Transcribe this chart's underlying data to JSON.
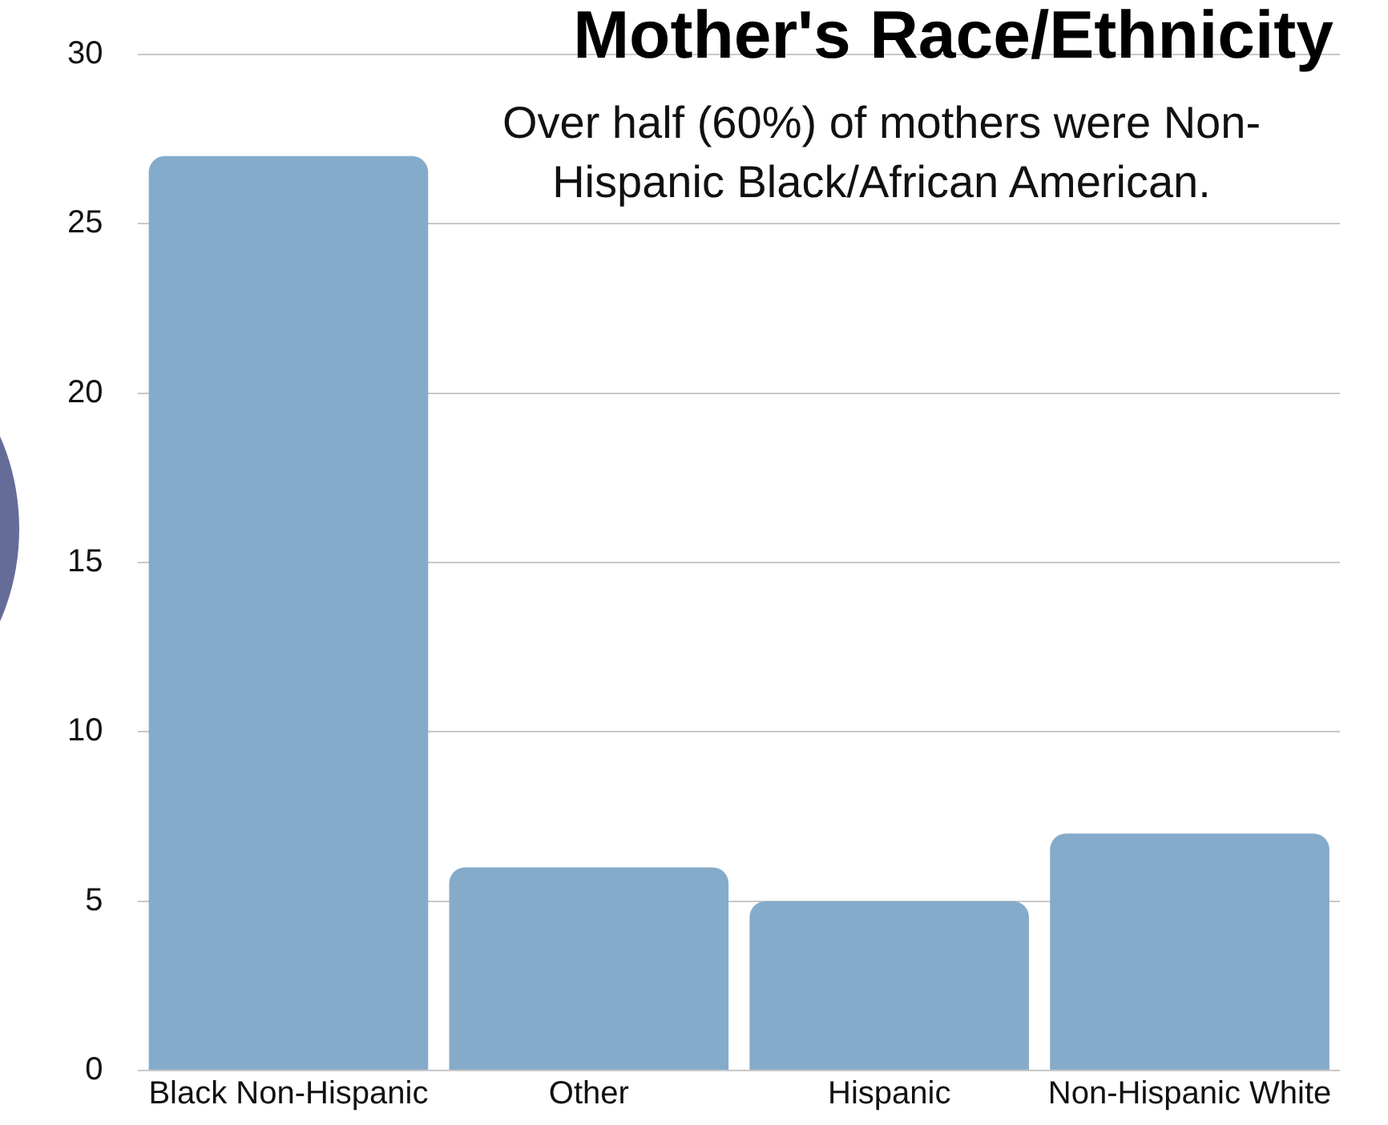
{
  "chart_data": {
    "type": "bar",
    "title": "Mother's Race/Ethnicity",
    "subtitle": "Over half (60%) of mothers were Non-Hispanic Black/African American.",
    "categories": [
      "Black Non-Hispanic",
      "Other",
      "Hispanic",
      "Non-Hispanic White"
    ],
    "values": [
      27,
      6,
      5,
      7
    ],
    "color": "#85abca",
    "ylim": [
      0,
      30
    ],
    "yticks": [
      0,
      5,
      10,
      15,
      20,
      25,
      30
    ],
    "grid": "y",
    "legend": false
  }
}
